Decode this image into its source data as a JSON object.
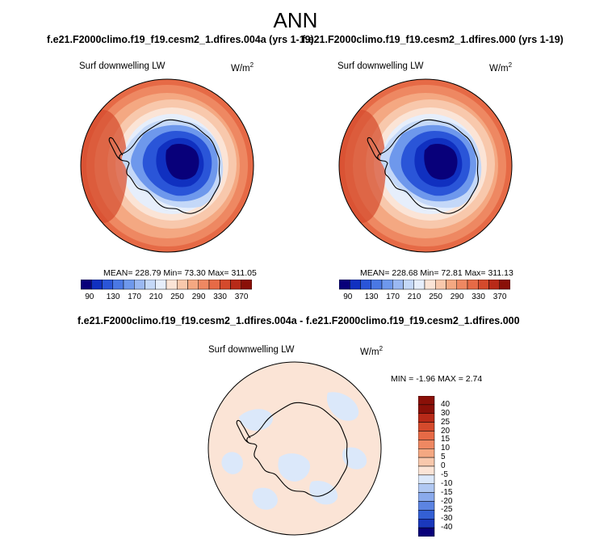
{
  "figure": {
    "title": "ANN"
  },
  "panels": [
    {
      "case_title": "f.e21.F2000climo.f19_f19.cesm2_1.dfires.004a (yrs 1-19)",
      "variable": "Surf downwelling LW",
      "units_base": "W/m",
      "units_exp": "2",
      "stats": "MEAN= 228.79  Min=  73.30  Max= 311.05",
      "colorbar_labels": [
        "90",
        "130",
        "170",
        "210",
        "250",
        "290",
        "330",
        "370"
      ]
    },
    {
      "case_title": "f.e21.F2000climo.f19_f19.cesm2_1.dfires.000 (yrs 1-19)",
      "variable": "Surf downwelling LW",
      "units_base": "W/m",
      "units_exp": "2",
      "stats": "MEAN= 228.68  Min=  72.81  Max= 311.13",
      "colorbar_labels": [
        "90",
        "130",
        "170",
        "210",
        "250",
        "290",
        "330",
        "370"
      ]
    }
  ],
  "diff_panel": {
    "title": "f.e21.F2000climo.f19_f19.cesm2_1.dfires.004a - f.e21.F2000climo.f19_f19.cesm2_1.dfires.000",
    "variable": "Surf downwelling LW",
    "units_base": "W/m",
    "units_exp": "2",
    "stats": "MIN =  -1.96 MAX =   2.74",
    "colorbar_labels": [
      "40",
      "30",
      "25",
      "20",
      "15",
      "10",
      "5",
      "0",
      "-5",
      "-10",
      "-15",
      "-20",
      "-25",
      "-30",
      "-40"
    ]
  },
  "colors": {
    "abs_scale": [
      "#08007a",
      "#1030c0",
      "#2a55d8",
      "#4a78e4",
      "#6e98ec",
      "#9ab8f2",
      "#c4d8f8",
      "#e6eefb",
      "#fbe4d6",
      "#f8c8ac",
      "#f4a882",
      "#ee8862",
      "#e66a46",
      "#d44a2c",
      "#b82a18",
      "#8a1008"
    ],
    "diff_scale": [
      "#8a1008",
      "#b82a18",
      "#d44a2c",
      "#e66a46",
      "#ee8862",
      "#f4a882",
      "#f8c8ac",
      "#fbe4d6",
      "#dbe8fa",
      "#b0c8f2",
      "#8aaaec",
      "#5c84e2",
      "#3460d4",
      "#1a38bc",
      "#08007a"
    ],
    "coastline": "#000000"
  }
}
